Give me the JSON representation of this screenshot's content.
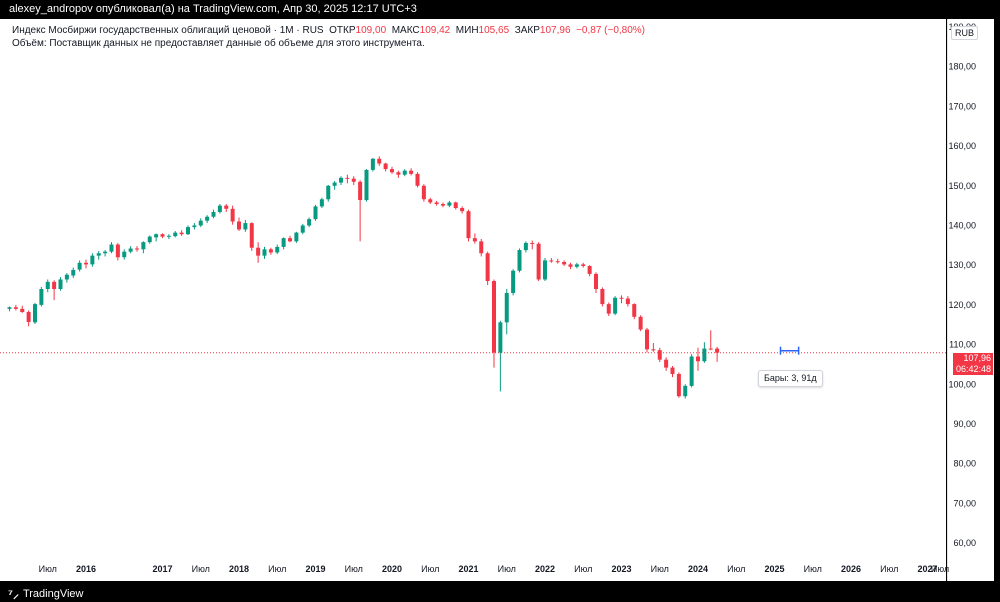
{
  "publisher": "alexey_andropov опубликовал(а) на TradingView.com, Апр 30, 2025 12:17 UTC+3",
  "legend": {
    "name": "Индекс Мосбиржи государственных облигаций ценовой · 1М · RUS",
    "o_label": "ОТКР",
    "o_value": "109,00",
    "h_label": "МАКС",
    "h_value": "109,42",
    "l_label": "МИН",
    "l_value": "105,65",
    "c_label": "ЗАКР",
    "c_value": "107,96",
    "change": "−0,87 (−0,80%)",
    "volume_note": "Объём: Поставщик данных не предоставляет данные об объеме для этого инструмента."
  },
  "currency": "RUB",
  "price_tag": {
    "price": "107,96",
    "countdown": "06:42:48"
  },
  "tooltip": "Бары: 3, 91д",
  "footer_brand": "TradingView",
  "colors": {
    "up": "#089981",
    "down": "#f23645",
    "last_line": "#f23645",
    "measure": "#2962ff"
  },
  "chart_data": {
    "type": "candlestick",
    "y_ticks": [
      "190,00",
      "180,00",
      "170,00",
      "160,00",
      "150,00",
      "140,00",
      "130,00",
      "120,00",
      "110,00",
      "100,00",
      "90,00",
      "80,00",
      "70,00",
      "60,00"
    ],
    "y_tick_values": [
      190,
      180,
      170,
      160,
      150,
      140,
      130,
      120,
      110,
      100,
      90,
      80,
      70,
      60
    ],
    "ylim": [
      56,
      192
    ],
    "x_ticks": [
      "Июл",
      "2016",
      "2017",
      "Июл",
      "2018",
      "Июл",
      "2019",
      "Июл",
      "2020",
      "Июл",
      "2021",
      "Июл",
      "2022",
      "Июл",
      "2023",
      "Июл",
      "2024",
      "Июл",
      "2025",
      "Июл",
      "2026",
      "Июл",
      "2027",
      "Июл"
    ],
    "x_tick_months": [
      6,
      12,
      24,
      30,
      36,
      42,
      48,
      54,
      60,
      66,
      72,
      78,
      84,
      90,
      96,
      102,
      108,
      114,
      120,
      126,
      132,
      138,
      144,
      150
    ],
    "x_label_overrides": {
      "0": "Июл",
      "1": "2016"
    },
    "start": "2015-06",
    "candles": [
      [
        119.0,
        119.6,
        118.4,
        119.4
      ],
      [
        119.4,
        120.0,
        118.6,
        119.0
      ],
      [
        119.0,
        119.8,
        118.0,
        118.2
      ],
      [
        118.2,
        118.6,
        114.6,
        115.7
      ],
      [
        115.6,
        120.5,
        115.2,
        120.2
      ],
      [
        120.0,
        124.5,
        119.6,
        124.0
      ],
      [
        124.0,
        126.4,
        123.2,
        125.8
      ],
      [
        125.8,
        126.2,
        121.2,
        124.0
      ],
      [
        124.0,
        127.0,
        123.6,
        126.4
      ],
      [
        126.4,
        128.0,
        125.6,
        127.6
      ],
      [
        127.4,
        129.4,
        126.8,
        128.8
      ],
      [
        128.9,
        131.2,
        128.4,
        130.6
      ],
      [
        130.6,
        131.4,
        129.2,
        130.2
      ],
      [
        130.2,
        133.0,
        129.6,
        132.4
      ],
      [
        132.4,
        133.6,
        131.4,
        133.0
      ],
      [
        133.0,
        133.8,
        132.2,
        133.4
      ],
      [
        133.4,
        135.8,
        133.0,
        135.2
      ],
      [
        135.2,
        135.6,
        131.2,
        132.0
      ],
      [
        132.0,
        134.0,
        131.4,
        133.4
      ],
      [
        133.4,
        134.8,
        133.0,
        134.2
      ],
      [
        134.2,
        134.8,
        133.4,
        134.0
      ],
      [
        134.0,
        136.0,
        133.0,
        135.8
      ],
      [
        135.8,
        137.5,
        135.4,
        137.2
      ],
      [
        137.0,
        138.0,
        136.0,
        137.8
      ],
      [
        137.8,
        138.0,
        136.8,
        137.2
      ],
      [
        137.2,
        137.8,
        136.6,
        137.4
      ],
      [
        137.3,
        138.6,
        137.0,
        138.2
      ],
      [
        138.2,
        138.8,
        137.4,
        137.8
      ],
      [
        137.8,
        140.0,
        137.6,
        139.6
      ],
      [
        139.6,
        140.6,
        139.0,
        140.0
      ],
      [
        140.0,
        141.8,
        139.6,
        141.2
      ],
      [
        141.2,
        142.6,
        140.6,
        142.2
      ],
      [
        142.2,
        144.0,
        141.8,
        143.4
      ],
      [
        143.4,
        145.4,
        143.0,
        145.0
      ],
      [
        145.0,
        145.4,
        143.4,
        144.2
      ],
      [
        144.2,
        145.0,
        140.2,
        141.0
      ],
      [
        141.0,
        142.0,
        138.6,
        139.0
      ],
      [
        139.0,
        141.4,
        138.4,
        140.6
      ],
      [
        140.6,
        140.8,
        133.6,
        134.4
      ],
      [
        134.4,
        135.8,
        130.6,
        132.4
      ],
      [
        132.4,
        134.6,
        131.6,
        134.0
      ],
      [
        134.0,
        134.4,
        132.6,
        133.2
      ],
      [
        133.2,
        135.2,
        132.8,
        134.6
      ],
      [
        134.6,
        137.0,
        134.0,
        136.8
      ],
      [
        136.8,
        137.4,
        135.8,
        136.0
      ],
      [
        136.0,
        138.4,
        135.6,
        138.2
      ],
      [
        138.2,
        140.4,
        137.8,
        140.0
      ],
      [
        140.0,
        142.0,
        139.6,
        141.6
      ],
      [
        141.6,
        145.2,
        141.2,
        144.8
      ],
      [
        144.8,
        147.0,
        144.4,
        146.6
      ],
      [
        146.6,
        150.2,
        146.0,
        150.0
      ],
      [
        150.0,
        151.2,
        149.0,
        150.8
      ],
      [
        150.8,
        152.4,
        150.2,
        152.0
      ],
      [
        152.0,
        152.8,
        150.6,
        151.8
      ],
      [
        151.8,
        152.4,
        150.2,
        151.0
      ],
      [
        151.0,
        151.4,
        136.0,
        146.4
      ],
      [
        146.4,
        154.2,
        146.0,
        154.0
      ],
      [
        154.0,
        157.0,
        153.6,
        156.8
      ],
      [
        156.8,
        157.4,
        155.0,
        155.6
      ],
      [
        155.6,
        155.8,
        153.6,
        154.2
      ],
      [
        154.2,
        154.8,
        153.0,
        153.4
      ],
      [
        153.4,
        153.8,
        152.0,
        152.8
      ],
      [
        152.8,
        154.2,
        152.4,
        153.8
      ],
      [
        153.8,
        154.4,
        152.6,
        153.0
      ],
      [
        153.0,
        153.4,
        149.6,
        150.0
      ],
      [
        150.0,
        150.4,
        146.0,
        146.6
      ],
      [
        146.6,
        147.0,
        145.4,
        145.8
      ],
      [
        145.8,
        146.2,
        145.0,
        145.4
      ],
      [
        145.4,
        145.8,
        144.6,
        145.0
      ],
      [
        145.0,
        146.2,
        144.6,
        145.8
      ],
      [
        145.8,
        146.0,
        144.0,
        144.4
      ],
      [
        144.4,
        144.8,
        143.0,
        143.6
      ],
      [
        143.6,
        144.0,
        136.0,
        136.8
      ],
      [
        136.8,
        138.0,
        135.4,
        136.0
      ],
      [
        136.0,
        136.6,
        132.2,
        133.0
      ],
      [
        133.0,
        133.4,
        125.0,
        126.0
      ],
      [
        126.0,
        126.4,
        104.2,
        108.0
      ],
      [
        108.0,
        116.0,
        98.2,
        115.6
      ],
      [
        115.6,
        124.0,
        112.6,
        123.0
      ],
      [
        123.0,
        129.0,
        122.4,
        128.6
      ],
      [
        128.6,
        134.2,
        128.2,
        133.8
      ],
      [
        133.8,
        136.0,
        133.2,
        135.6
      ],
      [
        135.6,
        136.2,
        134.0,
        135.4
      ],
      [
        135.4,
        135.8,
        126.0,
        126.4
      ],
      [
        126.4,
        131.8,
        126.0,
        131.2
      ],
      [
        131.2,
        131.8,
        130.6,
        131.0
      ],
      [
        131.0,
        131.6,
        130.4,
        130.8
      ],
      [
        130.8,
        131.2,
        129.8,
        130.2
      ],
      [
        130.2,
        130.6,
        129.0,
        129.6
      ],
      [
        129.6,
        130.6,
        129.2,
        130.2
      ],
      [
        130.2,
        130.6,
        129.4,
        129.8
      ],
      [
        129.8,
        130.0,
        127.2,
        127.8
      ],
      [
        127.8,
        128.2,
        123.0,
        124.0
      ],
      [
        124.0,
        124.4,
        119.6,
        120.2
      ],
      [
        120.2,
        120.6,
        117.2,
        117.8
      ],
      [
        117.8,
        122.2,
        117.4,
        121.8
      ],
      [
        121.8,
        122.4,
        120.4,
        121.6
      ],
      [
        121.6,
        122.2,
        119.6,
        120.2
      ],
      [
        120.2,
        120.4,
        116.4,
        117.0
      ],
      [
        117.0,
        117.4,
        113.4,
        113.8
      ],
      [
        113.8,
        114.2,
        108.0,
        108.8
      ],
      [
        108.8,
        110.4,
        108.2,
        108.6
      ],
      [
        108.6,
        109.2,
        105.6,
        106.2
      ],
      [
        106.2,
        106.8,
        103.4,
        104.2
      ],
      [
        104.2,
        104.6,
        101.8,
        102.6
      ],
      [
        102.6,
        103.0,
        96.6,
        97.0
      ],
      [
        97.0,
        100.0,
        96.4,
        99.6
      ],
      [
        99.6,
        107.6,
        99.2,
        107.0
      ],
      [
        107.0,
        109.2,
        103.4,
        105.8
      ],
      [
        105.8,
        110.6,
        105.4,
        109.0
      ],
      [
        109.0,
        113.6,
        108.6,
        108.8
      ],
      [
        109.0,
        109.42,
        105.65,
        107.96
      ]
    ],
    "last_price": 107.96,
    "measure_range": [
      120,
      123
    ]
  }
}
